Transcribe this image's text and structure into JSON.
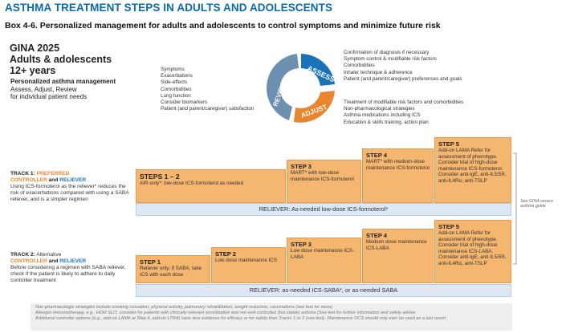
{
  "header": {
    "title": "ASTHMA TREATMENT STEPS IN ADULTS AND ADOLESCENTS",
    "box_title": "Box 4-6. Personalized management for adults and adolescents to control symptoms and minimize future risk"
  },
  "gina": {
    "line1": "GINA 2025",
    "line2": "Adults & adolescents",
    "line3": "12+ years",
    "mgmt_title": "Personalized asthma management",
    "mgmt_line2": "Assess, Adjust, Review",
    "mgmt_line3": "for individual patient needs"
  },
  "cycle": {
    "assess": "ASSESS",
    "adjust": "ADJUST",
    "review": "REVIEW",
    "review_items": [
      "Symptoms",
      "Exacerbations",
      "Side-effects",
      "Comorbidities",
      "Lung function",
      "Consider biomarkers",
      "Patient (and parent/caregiver) satisfaction"
    ],
    "assess_items": [
      "Confirmation of diagnosis if necessary",
      "Symptom control & modifiable risk factors",
      "Comorbidities",
      "Inhaler technique & adherence",
      "Patient (and parent/caregiver) preferences and goals"
    ],
    "adjust_items": [
      "Treatment of modifiable risk factors and comorbidities",
      "Non-pharmacological strategies",
      "Asthma medications including ICS",
      "Education & skills training, action plan"
    ]
  },
  "track1": {
    "label": "TRACK 1:",
    "pref": "PREFERRED",
    "controller": "CONTROLLER",
    "and": "and",
    "reliever": "RELIEVER",
    "desc": "Using ICS-formoterol as the reliever* reduces the risk of exacerbations compared with using a SABA reliever, and is a simpler regimen",
    "steps": [
      {
        "title": "STEPS 1 – 2",
        "text": "AIR-only*: low-dose ICS-formoterol as needed"
      },
      {
        "title": "STEP 3",
        "text": "MART* with low-dose maintenance ICS-formoterol"
      },
      {
        "title": "STEP 4",
        "text": "MART* with medium-dose maintenance ICS-formoterol"
      },
      {
        "title": "STEP 5",
        "text": "Add-on LAMA Refer for assessment of phenotype. Consider trial of high-dose maintenance ICS-formoterol. Consider anti-IgE, anti-IL5/5R, anti-IL4Rα, anti-TSLP"
      }
    ],
    "reliever_bar": "RELIEVER: As-needed low-dose ICS-formoterol*"
  },
  "track2": {
    "label": "TRACK 2:",
    "alt": "Alternative",
    "controller": "CONTROLLER",
    "and": "and",
    "reliever": "RELIEVER",
    "desc": "Before considering a regimen with SABA reliever, check if the patient is likely to adhere to daily controller treatment",
    "steps": [
      {
        "title": "STEP 1",
        "text": "Reliever only; if SABA, take ICS with each dose"
      },
      {
        "title": "STEP 2",
        "text": "Low dose maintenance ICS"
      },
      {
        "title": "STEP 3",
        "text": "Low dose maintenance ICS-LABA"
      },
      {
        "title": "STEP 4",
        "text": "Medium dose maintenance ICS-LABA"
      },
      {
        "title": "STEP 5",
        "text": "Add-on LAMA Refer for assessment of phenotype. Consider trial of high-dose maintenance ICS-LABA. Consider anti-IgE, anti-IL5/5R, anti-IL4Rα, anti-TSLP"
      }
    ],
    "reliever_bar": "RELIEVER: as-needed ICS-SABA*, or as-needed SABA"
  },
  "side_note": "See GINA severe asthma guide",
  "footer": {
    "line1": "Non-pharmacologic strategies include smoking cessation, physical activity, pulmonary rehabilitation, weight reduction, vaccinations (see text for more)",
    "line2": "Allergen immunotherapy, e.g., HDM SLIT, consider for patients with clinically relevant sensitization and not well-controlled (but stable) asthma (See text for further information and safety advice",
    "line3": "Additional controller options (e.g., add-on LAMA at Step 4, add-on LTRA) have less evidence for efficacy or for safety than Tracks 1 or 2 (see text). Maintenance OCS should only ever be used as a last resort"
  },
  "colors": {
    "step_fill": "#f5b66f",
    "reliever_fill": "#dde8f4",
    "assess_blue": "#1a73b8",
    "adjust_orange": "#e8862f",
    "title_blue": "#0b6aa8"
  }
}
